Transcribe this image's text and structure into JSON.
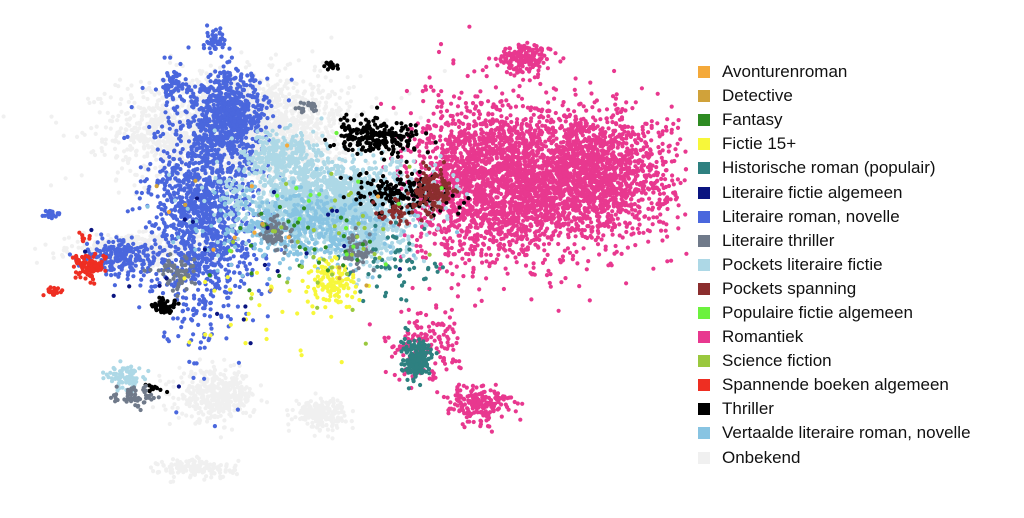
{
  "chart_data": {
    "type": "scatter",
    "title": "",
    "xlabel": "",
    "ylabel": "",
    "axes_visible": false,
    "grid": false,
    "legend_position": "right",
    "series": [
      {
        "name": "Avonturenroman",
        "color": "#F4A93A"
      },
      {
        "name": "Detective",
        "color": "#D0A23A"
      },
      {
        "name": "Fantasy",
        "color": "#2E8B22"
      },
      {
        "name": "Fictie 15+",
        "color": "#F7F73A"
      },
      {
        "name": "Historische roman (populair)",
        "color": "#2E8080"
      },
      {
        "name": "Literaire fictie algemeen",
        "color": "#0A1480"
      },
      {
        "name": "Literaire roman, novelle",
        "color": "#4A67DD"
      },
      {
        "name": "Literaire thriller",
        "color": "#707A8A"
      },
      {
        "name": "Pockets literaire fictie",
        "color": "#ADD8E6"
      },
      {
        "name": "Pockets spanning",
        "color": "#8B2E2E"
      },
      {
        "name": "Populaire fictie algemeen",
        "color": "#6CF23E"
      },
      {
        "name": "Romantiek",
        "color": "#E8388F"
      },
      {
        "name": "Science fiction",
        "color": "#9AC83E"
      },
      {
        "name": "Spannende boeken algemeen",
        "color": "#EE2E22"
      },
      {
        "name": "Thriller",
        "color": "#000000"
      },
      {
        "name": "Vertaalde literaire roman, novelle",
        "color": "#88C4E2"
      },
      {
        "name": "Onbekend",
        "color": "#F0F0F0"
      }
    ],
    "clusters": [
      {
        "series": "Onbekend",
        "cx": 0.33,
        "cy": 0.55,
        "sx": 0.09,
        "sy": 0.11,
        "n": 2400
      },
      {
        "series": "Onbekend",
        "cx": 0.17,
        "cy": 0.05,
        "sx": 0.05,
        "sy": 0.03,
        "n": 500
      },
      {
        "series": "Onbekend",
        "cx": 0.3,
        "cy": -0.55,
        "sx": 0.03,
        "sy": 0.05,
        "n": 400
      },
      {
        "series": "Onbekend",
        "cx": 0.46,
        "cy": -0.62,
        "sx": 0.02,
        "sy": 0.03,
        "n": 200
      },
      {
        "series": "Onbekend",
        "cx": 0.27,
        "cy": -0.85,
        "sx": 0.03,
        "sy": 0.02,
        "n": 150
      },
      {
        "series": "Romantiek",
        "cx": 0.87,
        "cy": 0.36,
        "sx": 0.07,
        "sy": 0.13,
        "n": 2100
      },
      {
        "series": "Romantiek",
        "cx": 0.72,
        "cy": 0.33,
        "sx": 0.06,
        "sy": 0.17,
        "n": 1800
      },
      {
        "series": "Romantiek",
        "cx": 0.78,
        "cy": 0.84,
        "sx": 0.02,
        "sy": 0.03,
        "n": 170
      },
      {
        "series": "Romantiek",
        "cx": 0.71,
        "cy": -0.58,
        "sx": 0.025,
        "sy": 0.04,
        "n": 190
      },
      {
        "series": "Romantiek",
        "cx": 0.62,
        "cy": -0.35,
        "sx": 0.03,
        "sy": 0.07,
        "n": 160
      },
      {
        "series": "Literaire roman, novelle",
        "cx": 0.32,
        "cy": 0.6,
        "sx": 0.03,
        "sy": 0.09,
        "n": 700
      },
      {
        "series": "Literaire roman, novelle",
        "cx": 0.28,
        "cy": 0.2,
        "sx": 0.04,
        "sy": 0.22,
        "n": 1300
      },
      {
        "series": "Literaire roman, novelle",
        "cx": 0.15,
        "cy": 0.02,
        "sx": 0.03,
        "sy": 0.04,
        "n": 220
      },
      {
        "series": "Literaire roman, novelle",
        "cx": 0.23,
        "cy": 0.73,
        "sx": 0.01,
        "sy": 0.03,
        "n": 60
      },
      {
        "series": "Literaire roman, novelle",
        "cx": 0.3,
        "cy": 0.92,
        "sx": 0.008,
        "sy": 0.02,
        "n": 40
      },
      {
        "series": "Literaire roman, novelle",
        "cx": 0.04,
        "cy": 0.2,
        "sx": 0.008,
        "sy": 0.01,
        "n": 25
      },
      {
        "series": "Pockets literaire fictie",
        "cx": 0.48,
        "cy": 0.25,
        "sx": 0.07,
        "sy": 0.08,
        "n": 1600
      },
      {
        "series": "Pockets literaire fictie",
        "cx": 0.4,
        "cy": 0.44,
        "sx": 0.03,
        "sy": 0.05,
        "n": 300
      },
      {
        "series": "Pockets literaire fictie",
        "cx": 0.53,
        "cy": 0.08,
        "sx": 0.03,
        "sy": 0.05,
        "n": 250
      },
      {
        "series": "Pockets literaire fictie",
        "cx": 0.16,
        "cy": -0.48,
        "sx": 0.015,
        "sy": 0.025,
        "n": 80
      },
      {
        "series": "Vertaalde literaire roman, novelle",
        "cx": 0.44,
        "cy": 0.15,
        "sx": 0.07,
        "sy": 0.08,
        "n": 500
      },
      {
        "series": "Thriller",
        "cx": 0.55,
        "cy": 0.52,
        "sx": 0.035,
        "sy": 0.035,
        "n": 220
      },
      {
        "series": "Thriller",
        "cx": 0.59,
        "cy": 0.28,
        "sx": 0.04,
        "sy": 0.04,
        "n": 160
      },
      {
        "series": "Thriller",
        "cx": 0.22,
        "cy": -0.18,
        "sx": 0.01,
        "sy": 0.02,
        "n": 50
      },
      {
        "series": "Thriller",
        "cx": 0.48,
        "cy": 0.81,
        "sx": 0.005,
        "sy": 0.01,
        "n": 15
      },
      {
        "series": "Thriller",
        "cx": 0.2,
        "cy": -0.52,
        "sx": 0.008,
        "sy": 0.01,
        "n": 12
      },
      {
        "series": "Pockets spanning",
        "cx": 0.64,
        "cy": 0.3,
        "sx": 0.015,
        "sy": 0.04,
        "n": 140
      },
      {
        "series": "Pockets spanning",
        "cx": 0.58,
        "cy": 0.22,
        "sx": 0.02,
        "sy": 0.03,
        "n": 40
      },
      {
        "series": "Literaire thriller",
        "cx": 0.39,
        "cy": 0.12,
        "sx": 0.015,
        "sy": 0.03,
        "n": 70
      },
      {
        "series": "Literaire thriller",
        "cx": 0.24,
        "cy": -0.05,
        "sx": 0.015,
        "sy": 0.04,
        "n": 60
      },
      {
        "series": "Literaire thriller",
        "cx": 0.52,
        "cy": 0.05,
        "sx": 0.01,
        "sy": 0.03,
        "n": 50
      },
      {
        "series": "Literaire thriller",
        "cx": 0.17,
        "cy": -0.55,
        "sx": 0.015,
        "sy": 0.02,
        "n": 60
      },
      {
        "series": "Literaire thriller",
        "cx": 0.44,
        "cy": 0.64,
        "sx": 0.01,
        "sy": 0.01,
        "n": 20
      },
      {
        "series": "Historische roman (populair)",
        "cx": 0.61,
        "cy": -0.4,
        "sx": 0.012,
        "sy": 0.04,
        "n": 180
      },
      {
        "series": "Historische roman (populair)",
        "cx": 0.58,
        "cy": 0.0,
        "sx": 0.04,
        "sy": 0.08,
        "n": 60
      },
      {
        "series": "Spannende boeken algemeen",
        "cx": 0.1,
        "cy": -0.02,
        "sx": 0.01,
        "sy": 0.025,
        "n": 90
      },
      {
        "series": "Spannende boeken algemeen",
        "cx": 0.045,
        "cy": -0.12,
        "sx": 0.006,
        "sy": 0.01,
        "n": 20
      },
      {
        "series": "Spannende boeken algemeen",
        "cx": 0.09,
        "cy": 0.1,
        "sx": 0.004,
        "sy": 0.01,
        "n": 8
      },
      {
        "series": "Fictie 15+",
        "cx": 0.48,
        "cy": -0.08,
        "sx": 0.02,
        "sy": 0.05,
        "n": 120
      },
      {
        "series": "Fictie 15+",
        "cx": 0.36,
        "cy": -0.2,
        "sx": 0.08,
        "sy": 0.12,
        "n": 30
      },
      {
        "series": "Fantasy",
        "cx": 0.45,
        "cy": 0.05,
        "sx": 0.06,
        "sy": 0.1,
        "n": 30
      },
      {
        "series": "Science fiction",
        "cx": 0.45,
        "cy": 0.1,
        "sx": 0.08,
        "sy": 0.12,
        "n": 40
      },
      {
        "series": "Populaire fictie algemeen",
        "cx": 0.45,
        "cy": 0.2,
        "sx": 0.08,
        "sy": 0.12,
        "n": 15
      },
      {
        "series": "Literaire fictie algemeen",
        "cx": 0.35,
        "cy": 0.0,
        "sx": 0.12,
        "sy": 0.2,
        "n": 25
      },
      {
        "series": "Detective",
        "cx": 0.4,
        "cy": 0.1,
        "sx": 0.1,
        "sy": 0.15,
        "n": 8
      },
      {
        "series": "Avonturenroman",
        "cx": 0.4,
        "cy": 0.1,
        "sx": 0.1,
        "sy": 0.15,
        "n": 8
      }
    ]
  }
}
